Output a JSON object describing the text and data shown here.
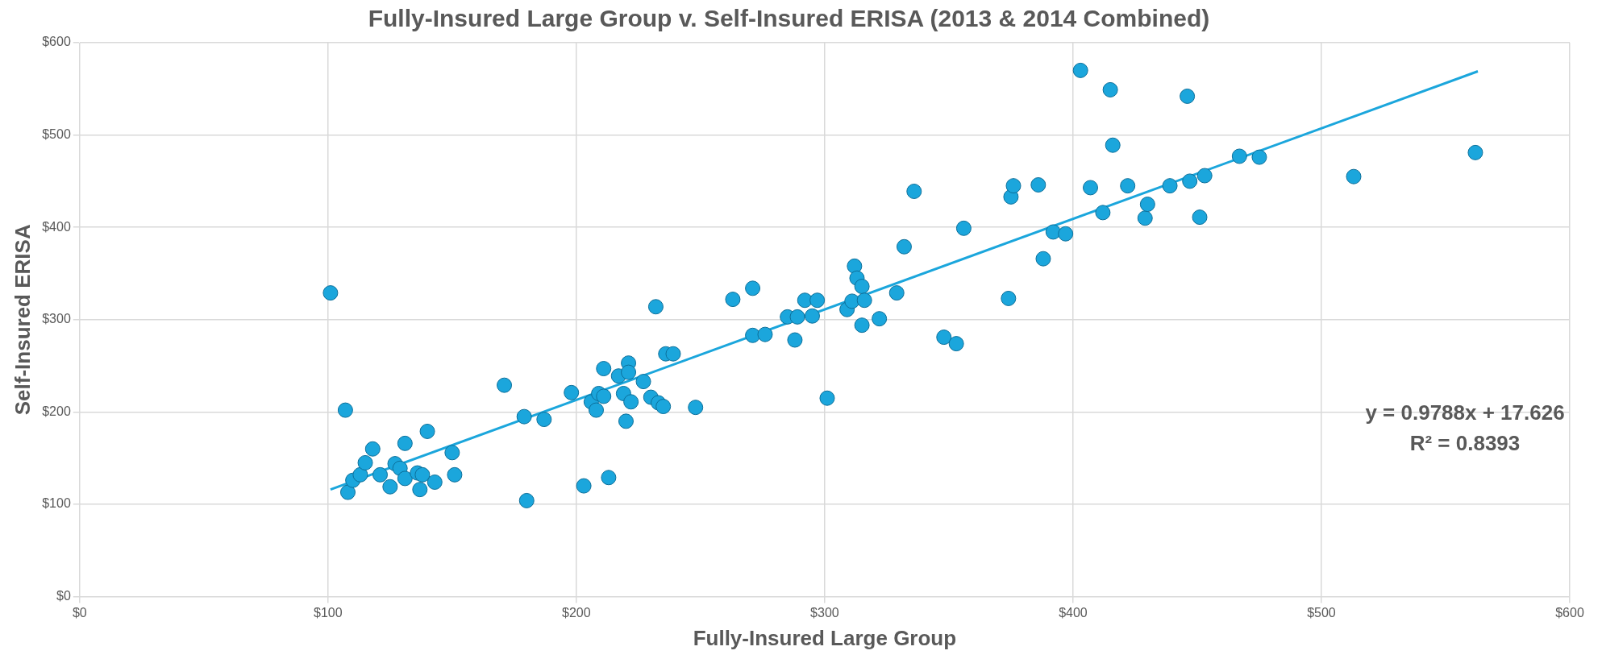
{
  "chart_data": {
    "type": "scatter",
    "title": "Fully-Insured Large Group v. Self-Insured ERISA (2013 & 2014 Combined)",
    "xlabel": "Fully-Insured Large Group",
    "ylabel": "Self-Insured ERISA",
    "xlim": [
      0,
      600
    ],
    "ylim": [
      0,
      600
    ],
    "xticks": [
      {
        "value": 0,
        "label": "$0"
      },
      {
        "value": 100,
        "label": "$100"
      },
      {
        "value": 200,
        "label": "$200"
      },
      {
        "value": 300,
        "label": "$300"
      },
      {
        "value": 400,
        "label": "$400"
      },
      {
        "value": 500,
        "label": "$500"
      },
      {
        "value": 600,
        "label": "$600"
      }
    ],
    "yticks": [
      {
        "value": 0,
        "label": "$0"
      },
      {
        "value": 100,
        "label": "$100"
      },
      {
        "value": 200,
        "label": "$200"
      },
      {
        "value": 300,
        "label": "$300"
      },
      {
        "value": 400,
        "label": "$400"
      },
      {
        "value": 500,
        "label": "$500"
      },
      {
        "value": 600,
        "label": "$600"
      }
    ],
    "grid": true,
    "legend": false,
    "marker": "circle",
    "annotations": [
      "y = 0.9788x + 17.626",
      "R² = 0.8393"
    ],
    "series": [
      {
        "type": "scatter",
        "color": "#1ba6dc",
        "x": [
          101,
          107,
          108,
          110,
          113,
          115,
          118,
          121,
          125,
          127,
          129,
          131,
          131,
          136,
          137,
          138,
          140,
          143,
          150,
          151,
          171,
          179,
          180,
          187,
          198,
          203,
          206,
          208,
          209,
          211,
          211,
          213,
          217,
          219,
          220,
          221,
          221,
          222,
          227,
          230,
          232,
          233,
          235,
          236,
          239,
          248,
          263,
          271,
          271,
          276,
          285,
          288,
          289,
          292,
          295,
          297,
          301,
          309,
          311,
          312,
          313,
          315,
          315,
          316,
          322,
          329,
          332,
          336,
          348,
          353,
          356,
          374,
          375,
          376,
          386,
          388,
          392,
          397,
          403,
          407,
          412,
          415,
          416,
          422,
          429,
          430,
          439,
          446,
          447,
          451,
          453,
          467,
          475,
          513,
          562
        ],
        "values": [
          329,
          202,
          113,
          126,
          132,
          145,
          160,
          132,
          119,
          144,
          139,
          166,
          128,
          134,
          116,
          132,
          179,
          124,
          156,
          132,
          229,
          195,
          104,
          192,
          221,
          120,
          211,
          202,
          220,
          247,
          217,
          129,
          239,
          220,
          190,
          253,
          243,
          211,
          233,
          216,
          314,
          210,
          206,
          263,
          263,
          205,
          322,
          334,
          283,
          284,
          303,
          278,
          303,
          321,
          304,
          321,
          215,
          311,
          320,
          358,
          345,
          294,
          336,
          321,
          301,
          329,
          379,
          439,
          281,
          274,
          399,
          323,
          433,
          445,
          446,
          366,
          395,
          393,
          570,
          443,
          416,
          549,
          489,
          445,
          410,
          425,
          445,
          542,
          450,
          411,
          456,
          477,
          476,
          455,
          481
        ]
      },
      {
        "type": "line",
        "color": "#1ba6dc",
        "x": [
          101,
          563
        ],
        "values": [
          116,
          569
        ],
        "marker": "none"
      }
    ]
  }
}
